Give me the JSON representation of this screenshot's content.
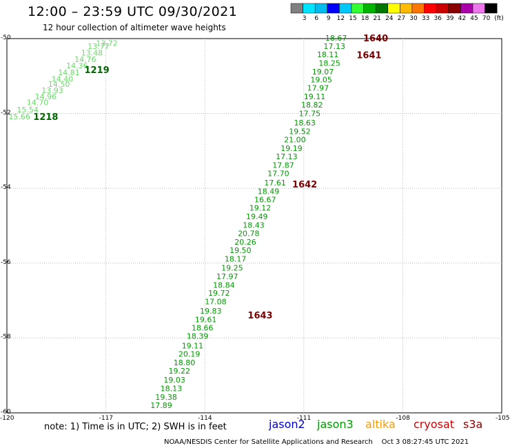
{
  "header": {
    "title": "12:00 – 23:59 UTC 09/30/2021",
    "subtitle": "12 hour collection of altimeter wave heights"
  },
  "color_scale": {
    "unit": "(ft)",
    "bins": [
      {
        "label": "",
        "color": "#808080"
      },
      {
        "label": "3",
        "color": "#00e5ff"
      },
      {
        "label": "6",
        "color": "#00bbee"
      },
      {
        "label": "9",
        "color": "#0000ff"
      },
      {
        "label": "12",
        "color": "#00c8ff"
      },
      {
        "label": "15",
        "color": "#33ff33"
      },
      {
        "label": "18",
        "color": "#00b400"
      },
      {
        "label": "21",
        "color": "#007800"
      },
      {
        "label": "24",
        "color": "#ffff00"
      },
      {
        "label": "27",
        "color": "#ffbb00"
      },
      {
        "label": "30",
        "color": "#ff7700"
      },
      {
        "label": "33",
        "color": "#ff0000"
      },
      {
        "label": "36",
        "color": "#cc0000"
      },
      {
        "label": "39",
        "color": "#880000"
      },
      {
        "label": "42",
        "color": "#aa00aa"
      },
      {
        "label": "45",
        "color": "#ee77ee"
      },
      {
        "label": "70",
        "color": "#000000"
      }
    ]
  },
  "map": {
    "lon_range": [
      -120,
      -105
    ],
    "lat_range": [
      -60,
      -50
    ],
    "lat_ticks": [
      "-50",
      "-52",
      "-54",
      "-56",
      "-58",
      "-60"
    ],
    "lon_ticks": [
      "-120",
      "-117",
      "-114",
      "-111",
      "-108",
      "-105"
    ],
    "gridline_color": "#b4b4b4",
    "pass_labels": [
      {
        "text": "1640",
        "lon": -109.2,
        "lat": -50.0,
        "color": "#7a0000"
      },
      {
        "text": "1641",
        "lon": -109.4,
        "lat": -50.45,
        "color": "#7a0000"
      },
      {
        "text": "1642",
        "lon": -111.35,
        "lat": -53.9,
        "color": "#7a0000"
      },
      {
        "text": "1643",
        "lon": -112.7,
        "lat": -57.4,
        "color": "#7a0000"
      },
      {
        "text": "1219",
        "lon": -117.65,
        "lat": -50.85,
        "color": "#006600"
      },
      {
        "text": "1218",
        "lon": -119.2,
        "lat": -52.1,
        "color": "#006600"
      }
    ],
    "tracks": [
      {
        "color": "#009900",
        "points": [
          {
            "value": "18.67",
            "lon": -110.35,
            "lat": -49.98
          },
          {
            "value": "17.13",
            "lon": -110.4,
            "lat": -50.2
          },
          {
            "value": "18.11",
            "lon": -110.6,
            "lat": -50.42
          },
          {
            "value": "18.25",
            "lon": -110.55,
            "lat": -50.65
          },
          {
            "value": "19.07",
            "lon": -110.75,
            "lat": -50.88
          },
          {
            "value": "19.05",
            "lon": -110.8,
            "lat": -51.1
          },
          {
            "value": "17.97",
            "lon": -110.9,
            "lat": -51.32
          },
          {
            "value": "19.11",
            "lon": -111.0,
            "lat": -51.55
          },
          {
            "value": "18.82",
            "lon": -111.08,
            "lat": -51.77
          },
          {
            "value": "17.75",
            "lon": -111.15,
            "lat": -52.0
          },
          {
            "value": "18.63",
            "lon": -111.3,
            "lat": -52.25
          },
          {
            "value": "19.52",
            "lon": -111.45,
            "lat": -52.48
          },
          {
            "value": "21.00",
            "lon": -111.6,
            "lat": -52.7
          },
          {
            "value": "19.19",
            "lon": -111.7,
            "lat": -52.93
          },
          {
            "value": "17.13",
            "lon": -111.85,
            "lat": -53.15
          },
          {
            "value": "17.87",
            "lon": -111.95,
            "lat": -53.38
          },
          {
            "value": "17.70",
            "lon": -112.1,
            "lat": -53.6
          },
          {
            "value": "17.61",
            "lon": -112.2,
            "lat": -53.85
          },
          {
            "value": "18.49",
            "lon": -112.4,
            "lat": -54.08
          },
          {
            "value": "16.67",
            "lon": -112.5,
            "lat": -54.3
          },
          {
            "value": "19.12",
            "lon": -112.65,
            "lat": -54.52
          },
          {
            "value": "19.49",
            "lon": -112.75,
            "lat": -54.75
          },
          {
            "value": "18.43",
            "lon": -112.85,
            "lat": -54.98
          },
          {
            "value": "20.78",
            "lon": -113.0,
            "lat": -55.2
          },
          {
            "value": "20.26",
            "lon": -113.1,
            "lat": -55.43
          },
          {
            "value": "19.50",
            "lon": -113.25,
            "lat": -55.65
          },
          {
            "value": "18.17",
            "lon": -113.4,
            "lat": -55.88
          },
          {
            "value": "19.25",
            "lon": -113.5,
            "lat": -56.12
          },
          {
            "value": "17.97",
            "lon": -113.65,
            "lat": -56.35
          },
          {
            "value": "18.84",
            "lon": -113.75,
            "lat": -56.58
          },
          {
            "value": "19.72",
            "lon": -113.9,
            "lat": -56.8
          },
          {
            "value": "17.08",
            "lon": -114.0,
            "lat": -57.03
          },
          {
            "value": "19.83",
            "lon": -114.15,
            "lat": -57.27
          },
          {
            "value": "19.61",
            "lon": -114.3,
            "lat": -57.5
          },
          {
            "value": "18.66",
            "lon": -114.4,
            "lat": -57.73
          },
          {
            "value": "18.39",
            "lon": -114.55,
            "lat": -57.95
          },
          {
            "value": "19.11",
            "lon": -114.7,
            "lat": -58.2
          },
          {
            "value": "20.19",
            "lon": -114.8,
            "lat": -58.43
          },
          {
            "value": "18.80",
            "lon": -114.95,
            "lat": -58.66
          },
          {
            "value": "19.22",
            "lon": -115.1,
            "lat": -58.88
          },
          {
            "value": "19.03",
            "lon": -115.25,
            "lat": -59.12
          },
          {
            "value": "18.13",
            "lon": -115.35,
            "lat": -59.35
          },
          {
            "value": "19.38",
            "lon": -115.5,
            "lat": -59.58
          },
          {
            "value": "17.89",
            "lon": -115.65,
            "lat": -59.8
          }
        ]
      },
      {
        "color": "#66dd66",
        "points": [
          {
            "value": "13.72",
            "lon": -117.3,
            "lat": -50.12
          },
          {
            "value": "13.77",
            "lon": -117.55,
            "lat": -50.2
          },
          {
            "value": "13.48",
            "lon": -117.75,
            "lat": -50.38
          },
          {
            "value": "14.76",
            "lon": -117.95,
            "lat": -50.55
          },
          {
            "value": "14.36",
            "lon": -118.2,
            "lat": -50.72
          },
          {
            "value": "14.81",
            "lon": -118.45,
            "lat": -50.9
          },
          {
            "value": "14.40",
            "lon": -118.65,
            "lat": -51.08
          },
          {
            "value": "14.50",
            "lon": -118.75,
            "lat": -51.22
          },
          {
            "value": "13.93",
            "lon": -118.95,
            "lat": -51.38
          },
          {
            "value": "14.96",
            "lon": -119.15,
            "lat": -51.55
          },
          {
            "value": "14.70",
            "lon": -119.4,
            "lat": -51.7
          },
          {
            "value": "15.54",
            "lon": -119.7,
            "lat": -51.9
          },
          {
            "value": "15.66",
            "lon": -119.95,
            "lat": -52.08
          }
        ]
      }
    ]
  },
  "footer": {
    "note": "note: 1) Time is in UTC; 2) SWH is in feet",
    "missions": [
      {
        "name": "jason2",
        "color": "#0000cc"
      },
      {
        "name": "jason3",
        "color": "#009900"
      },
      {
        "name": "altika",
        "color": "#ff9900"
      },
      {
        "name": "cryosat",
        "color": "#cc0000"
      },
      {
        "name": "s3a",
        "color": "#880000"
      }
    ],
    "credit": "NOAA/NESDIS Center for Satellite Applications and Research",
    "timestamp": "Oct  3 08:27:45 UTC 2021"
  }
}
